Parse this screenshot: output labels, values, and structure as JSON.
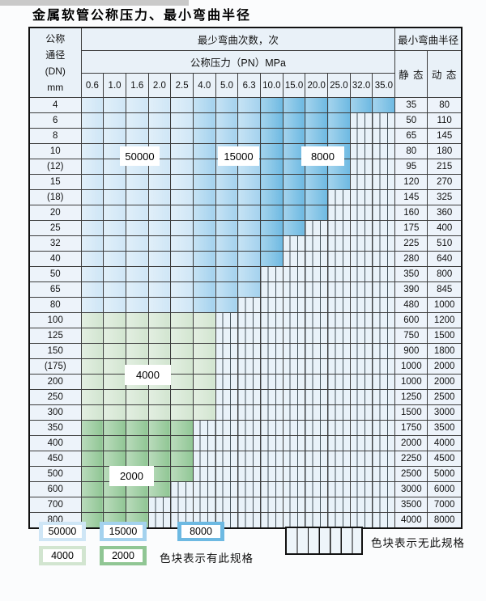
{
  "title": "金属软管公称压力、最小弯曲半径",
  "table": {
    "header": {
      "dn_lines": [
        "公称",
        "通径",
        "(DN)",
        "mm"
      ],
      "bend_cycles_label": "最少弯曲次数，次",
      "pressure_label": "公称压力（PN）MPa",
      "radius_label": "最小弯曲半径",
      "static_label": "静 态",
      "dynamic_label": "动 态",
      "pressure_columns": [
        "0.6",
        "1.0",
        "1.6",
        "2.0",
        "2.5",
        "4.0",
        "5.0",
        "6.3",
        "10.0",
        "15.0",
        "20.0",
        "25.0",
        "32.0",
        "35.0"
      ]
    },
    "rows": [
      {
        "dn": "4",
        "st": "35",
        "dy": "80",
        "bands": [
          [
            "50000",
            0,
            4
          ],
          [
            "15000",
            5,
            7
          ],
          [
            "8000",
            8,
            13
          ]
        ]
      },
      {
        "dn": "6",
        "st": "50",
        "dy": "110",
        "bands": [
          [
            "50000",
            0,
            4
          ],
          [
            "15000",
            5,
            7
          ],
          [
            "8000",
            8,
            11
          ],
          [
            "none",
            12,
            13
          ]
        ]
      },
      {
        "dn": "8",
        "st": "65",
        "dy": "145",
        "bands": [
          [
            "50000",
            0,
            4
          ],
          [
            "15000",
            5,
            7
          ],
          [
            "8000",
            8,
            11
          ],
          [
            "none",
            12,
            13
          ]
        ]
      },
      {
        "dn": "10",
        "st": "80",
        "dy": "180",
        "bands": [
          [
            "50000",
            0,
            4
          ],
          [
            "15000",
            5,
            7
          ],
          [
            "8000",
            8,
            11
          ],
          [
            "none",
            12,
            13
          ]
        ]
      },
      {
        "dn": "(12)",
        "st": "95",
        "dy": "215",
        "bands": [
          [
            "50000",
            0,
            4
          ],
          [
            "15000",
            5,
            7
          ],
          [
            "8000",
            8,
            11
          ],
          [
            "none",
            12,
            13
          ]
        ]
      },
      {
        "dn": "15",
        "st": "120",
        "dy": "270",
        "bands": [
          [
            "50000",
            0,
            4
          ],
          [
            "15000",
            5,
            7
          ],
          [
            "8000",
            8,
            11
          ],
          [
            "none",
            12,
            13
          ]
        ]
      },
      {
        "dn": "(18)",
        "st": "145",
        "dy": "325",
        "bands": [
          [
            "50000",
            0,
            4
          ],
          [
            "15000",
            5,
            7
          ],
          [
            "8000",
            8,
            10
          ],
          [
            "none",
            11,
            13
          ]
        ]
      },
      {
        "dn": "20",
        "st": "160",
        "dy": "360",
        "bands": [
          [
            "50000",
            0,
            4
          ],
          [
            "15000",
            5,
            7
          ],
          [
            "8000",
            8,
            10
          ],
          [
            "none",
            11,
            13
          ]
        ]
      },
      {
        "dn": "25",
        "st": "175",
        "dy": "400",
        "bands": [
          [
            "50000",
            0,
            4
          ],
          [
            "15000",
            5,
            7
          ],
          [
            "8000",
            8,
            9
          ],
          [
            "none",
            10,
            13
          ]
        ]
      },
      {
        "dn": "32",
        "st": "225",
        "dy": "510",
        "bands": [
          [
            "50000",
            0,
            4
          ],
          [
            "15000",
            5,
            7
          ],
          [
            "8000",
            8,
            8
          ],
          [
            "none",
            9,
            13
          ]
        ]
      },
      {
        "dn": "40",
        "st": "280",
        "dy": "640",
        "bands": [
          [
            "50000",
            0,
            4
          ],
          [
            "15000",
            5,
            7
          ],
          [
            "8000",
            8,
            8
          ],
          [
            "none",
            9,
            13
          ]
        ]
      },
      {
        "dn": "50",
        "st": "350",
        "dy": "800",
        "bands": [
          [
            "50000",
            0,
            4
          ],
          [
            "15000",
            5,
            7
          ],
          [
            "none",
            8,
            13
          ]
        ]
      },
      {
        "dn": "65",
        "st": "390",
        "dy": "845",
        "bands": [
          [
            "50000",
            0,
            4
          ],
          [
            "15000",
            5,
            7
          ],
          [
            "none",
            8,
            13
          ]
        ]
      },
      {
        "dn": "80",
        "st": "480",
        "dy": "1000",
        "bands": [
          [
            "50000",
            0,
            4
          ],
          [
            "15000",
            5,
            6
          ],
          [
            "none",
            7,
            13
          ]
        ]
      },
      {
        "dn": "100",
        "st": "600",
        "dy": "1200",
        "bands": [
          [
            "4000",
            0,
            5
          ],
          [
            "none",
            6,
            13
          ]
        ]
      },
      {
        "dn": "125",
        "st": "750",
        "dy": "1500",
        "bands": [
          [
            "4000",
            0,
            5
          ],
          [
            "none",
            6,
            13
          ]
        ]
      },
      {
        "dn": "150",
        "st": "900",
        "dy": "1800",
        "bands": [
          [
            "4000",
            0,
            5
          ],
          [
            "none",
            6,
            13
          ]
        ]
      },
      {
        "dn": "(175)",
        "st": "1000",
        "dy": "2000",
        "bands": [
          [
            "4000",
            0,
            5
          ],
          [
            "none",
            6,
            13
          ]
        ]
      },
      {
        "dn": "200",
        "st": "1000",
        "dy": "2000",
        "bands": [
          [
            "4000",
            0,
            5
          ],
          [
            "none",
            6,
            13
          ]
        ]
      },
      {
        "dn": "250",
        "st": "1250",
        "dy": "2500",
        "bands": [
          [
            "4000",
            0,
            5
          ],
          [
            "none",
            6,
            13
          ]
        ]
      },
      {
        "dn": "300",
        "st": "1500",
        "dy": "3000",
        "bands": [
          [
            "4000",
            0,
            5
          ],
          [
            "none",
            6,
            13
          ]
        ]
      },
      {
        "dn": "350",
        "st": "1750",
        "dy": "3500",
        "bands": [
          [
            "2000",
            0,
            4
          ],
          [
            "none",
            5,
            13
          ]
        ]
      },
      {
        "dn": "400",
        "st": "2000",
        "dy": "4000",
        "bands": [
          [
            "2000",
            0,
            4
          ],
          [
            "none",
            5,
            13
          ]
        ]
      },
      {
        "dn": "450",
        "st": "2250",
        "dy": "4500",
        "bands": [
          [
            "2000",
            0,
            4
          ],
          [
            "none",
            5,
            13
          ]
        ]
      },
      {
        "dn": "500",
        "st": "2500",
        "dy": "5000",
        "bands": [
          [
            "2000",
            0,
            4
          ],
          [
            "none",
            5,
            13
          ]
        ]
      },
      {
        "dn": "600",
        "st": "3000",
        "dy": "6000",
        "bands": [
          [
            "2000",
            0,
            3
          ],
          [
            "none",
            4,
            13
          ]
        ]
      },
      {
        "dn": "700",
        "st": "3500",
        "dy": "7000",
        "bands": [
          [
            "2000",
            0,
            2
          ],
          [
            "none",
            3,
            13
          ]
        ]
      },
      {
        "dn": "800",
        "st": "4000",
        "dy": "8000",
        "bands": [
          [
            "2000",
            0,
            2
          ],
          [
            "none",
            3,
            13
          ]
        ]
      }
    ]
  },
  "overlay_labels": {
    "v50000": "50000",
    "v15000": "15000",
    "v8000": "8000",
    "v4000": "4000",
    "v2000": "2000"
  },
  "legend": {
    "v50000": "50000",
    "v15000": "15000",
    "v8000": "8000",
    "v4000": "4000",
    "v2000": "2000",
    "available_label": "色块表示有此规格",
    "unavailable_label": "色块表示无此规格"
  },
  "colors": {
    "50000": "#cfe6f6",
    "15000": "#a4d2ee",
    "8000": "#6db9e2",
    "4000": "#d2e5d0",
    "2000": "#90c694",
    "hatch_bg": "#e9f2f9"
  }
}
